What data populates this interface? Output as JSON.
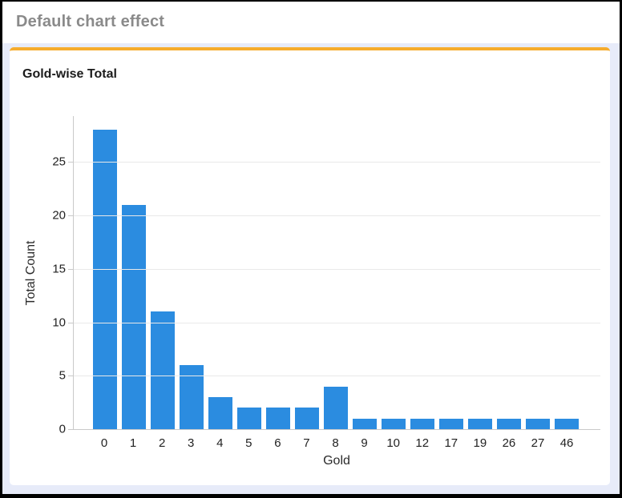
{
  "header": {
    "title": "Default chart effect"
  },
  "card": {
    "accent_color": "#f6ac2d",
    "background": "#ffffff"
  },
  "page_background": "#e7ebf9",
  "chart_data": {
    "type": "bar",
    "title": "Gold-wise Total",
    "xlabel": "Gold",
    "ylabel": "Total Count",
    "categories": [
      "0",
      "1",
      "2",
      "3",
      "4",
      "5",
      "6",
      "7",
      "8",
      "9",
      "10",
      "12",
      "17",
      "19",
      "26",
      "27",
      "46"
    ],
    "values": [
      28,
      21,
      11,
      6,
      3,
      2,
      2,
      2,
      4,
      1,
      1,
      1,
      1,
      1,
      1,
      1,
      1
    ],
    "yticks": [
      0,
      5,
      10,
      15,
      20,
      25
    ],
    "ylim": [
      0,
      29.3
    ],
    "grid": true,
    "legend": "none",
    "bar_color": "#2b8ce0",
    "grid_color": "#e9e9e9",
    "axis_color": "#c9c9c9",
    "label_color": "#222222"
  }
}
